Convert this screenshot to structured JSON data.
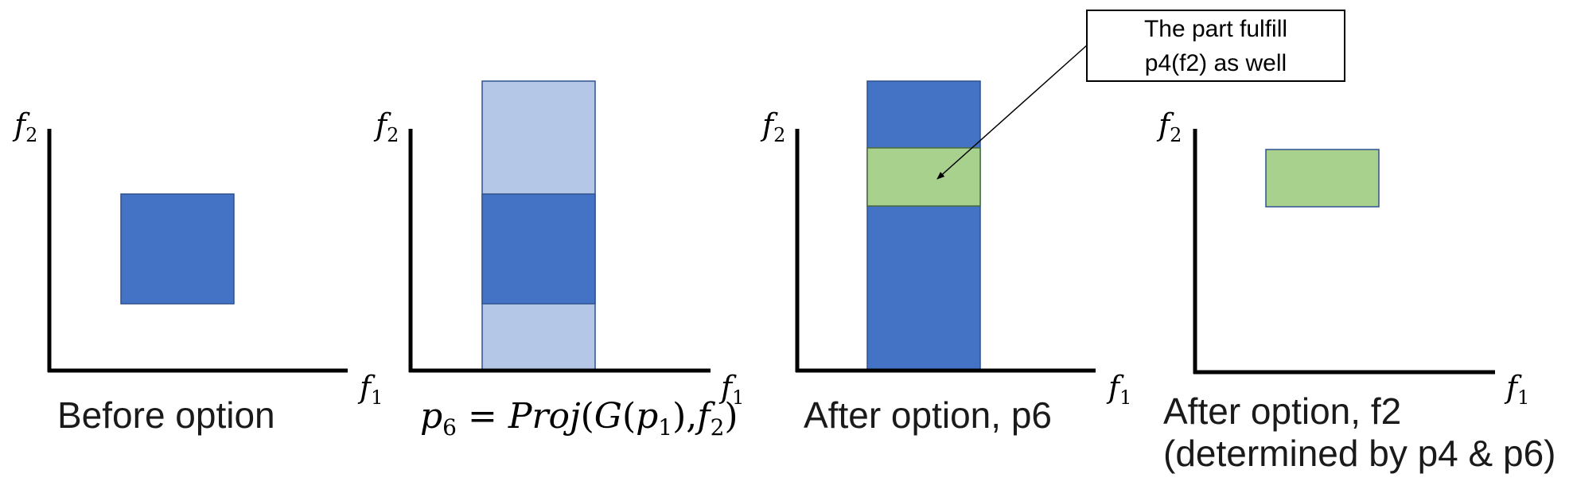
{
  "colors": {
    "dark_blue": "#4472C4",
    "light_blue": "#B4C7E7",
    "green": "#A9D18E",
    "green_border": "#4A6B3A",
    "axis": "#000000",
    "background": "#FFFFFF"
  },
  "axis_labels": {
    "f1_base": "f",
    "f1_sub": "1",
    "f2_base": "f",
    "f2_sub": "2"
  },
  "panels": [
    {
      "id": "before-option",
      "caption_lines": [
        "Before option"
      ]
    },
    {
      "id": "projection",
      "formula": {
        "p": "p",
        "p_sub": "6",
        "equals": " = ",
        "proj": "Proj",
        "open": "(",
        "g": "G",
        "g_open": "(",
        "p1": "p",
        "p1_sub": "1",
        "g_close": "),",
        "f": "f",
        "f_sub": "2",
        "close": ")"
      }
    },
    {
      "id": "after-option-p6",
      "caption_lines": [
        "After option, p6"
      ]
    },
    {
      "id": "after-option-f2",
      "caption_lines": [
        "After option, f2",
        "(determined by p4 & p6)"
      ]
    }
  ],
  "callout": {
    "lines": [
      "The part fulfill",
      "p4(f2) as well"
    ]
  }
}
